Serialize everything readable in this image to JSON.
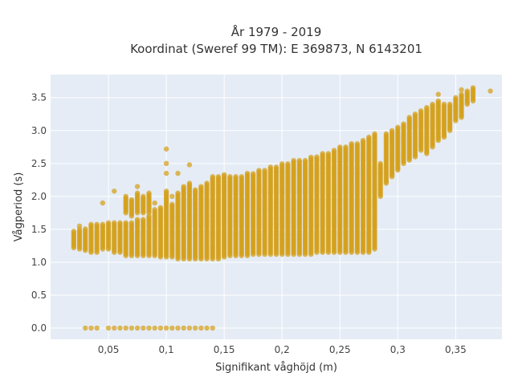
{
  "colors": {
    "background": "#ffffff",
    "plot_background": "#e5ecf6",
    "grid": "#ffffff",
    "marker": "#d4a017",
    "text": "#333333"
  },
  "chart_data": {
    "type": "scatter",
    "title_line1": "År 1979 - 2019",
    "title_line2": "Koordinat (Sweref 99 TM): E 369873, N 6143201",
    "xlabel": "Signifikant våghöjd (m)",
    "ylabel": "Vågperiod (s)",
    "xlim": [
      0.0,
      0.39
    ],
    "ylim": [
      -0.17,
      3.85
    ],
    "xticks": [
      0.05,
      0.1,
      0.15,
      0.2,
      0.25,
      0.3,
      0.35
    ],
    "xtick_labels": [
      "0,05",
      "0,1",
      "0,15",
      "0,2",
      "0,25",
      "0,3",
      "0,35"
    ],
    "yticks": [
      0,
      0.5,
      1,
      1.5,
      2,
      2.5,
      3,
      3.5
    ],
    "ytick_labels": [
      "0.0",
      "0.5",
      "1.0",
      "1.5",
      "2.0",
      "2.5",
      "3.0",
      "3.5"
    ],
    "grid": true,
    "marker_color": "#d4a017",
    "clusters": [
      {
        "x": 0.02,
        "ranges": [
          [
            1.22,
            1.47
          ]
        ]
      },
      {
        "x": 0.025,
        "ranges": [
          [
            1.2,
            1.5
          ]
        ],
        "extra": [
          1.55
        ]
      },
      {
        "x": 0.03,
        "ranges": [
          [
            1.18,
            1.52
          ]
        ],
        "extra": [
          0.0
        ]
      },
      {
        "x": 0.035,
        "ranges": [
          [
            1.15,
            1.58
          ]
        ],
        "extra": [
          0.0
        ]
      },
      {
        "x": 0.04,
        "ranges": [
          [
            1.15,
            1.58
          ]
        ],
        "extra": [
          0.0
        ]
      },
      {
        "x": 0.045,
        "ranges": [
          [
            1.2,
            1.58
          ]
        ],
        "extra": [
          1.9
        ]
      },
      {
        "x": 0.05,
        "ranges": [
          [
            1.2,
            1.6
          ]
        ],
        "extra": [
          0.0
        ]
      },
      {
        "x": 0.055,
        "ranges": [
          [
            1.15,
            1.6
          ]
        ],
        "extra": [
          2.08,
          0.0
        ]
      },
      {
        "x": 0.06,
        "ranges": [
          [
            1.15,
            1.6
          ]
        ],
        "extra": [
          0.0
        ]
      },
      {
        "x": 0.065,
        "ranges": [
          [
            1.1,
            1.6
          ],
          [
            1.75,
            2.0
          ]
        ],
        "extra": [
          0.0
        ]
      },
      {
        "x": 0.07,
        "ranges": [
          [
            1.1,
            1.6
          ],
          [
            1.7,
            1.95
          ]
        ],
        "extra": [
          0.0
        ]
      },
      {
        "x": 0.075,
        "ranges": [
          [
            1.1,
            1.65
          ],
          [
            1.75,
            2.05
          ]
        ],
        "extra": [
          2.15,
          0.0
        ]
      },
      {
        "x": 0.08,
        "ranges": [
          [
            1.1,
            1.65
          ],
          [
            1.75,
            2.0
          ]
        ],
        "extra": [
          0.0
        ]
      },
      {
        "x": 0.085,
        "ranges": [
          [
            1.1,
            1.7
          ],
          [
            1.75,
            2.05
          ]
        ],
        "extra": [
          0.0
        ]
      },
      {
        "x": 0.09,
        "ranges": [
          [
            1.1,
            1.8
          ]
        ],
        "extra": [
          1.9,
          0.0
        ]
      },
      {
        "x": 0.095,
        "ranges": [
          [
            1.08,
            1.85
          ]
        ],
        "extra": [
          0.0
        ]
      },
      {
        "x": 0.1,
        "ranges": [
          [
            1.08,
            2.1
          ]
        ],
        "extra": [
          2.35,
          2.5,
          2.72,
          0.0
        ]
      },
      {
        "x": 0.105,
        "ranges": [
          [
            1.08,
            1.9
          ]
        ],
        "extra": [
          2.0,
          0.0
        ]
      },
      {
        "x": 0.11,
        "ranges": [
          [
            1.05,
            2.05
          ]
        ],
        "extra": [
          2.35,
          0.0
        ]
      },
      {
        "x": 0.115,
        "ranges": [
          [
            1.05,
            2.15
          ]
        ],
        "extra": [
          0.0
        ]
      },
      {
        "x": 0.12,
        "ranges": [
          [
            1.05,
            2.2
          ]
        ],
        "extra": [
          2.48,
          0.0
        ]
      },
      {
        "x": 0.125,
        "ranges": [
          [
            1.05,
            2.1
          ]
        ],
        "extra": [
          0.0
        ]
      },
      {
        "x": 0.13,
        "ranges": [
          [
            1.05,
            2.15
          ]
        ],
        "extra": [
          0.0
        ]
      },
      {
        "x": 0.135,
        "ranges": [
          [
            1.05,
            2.2
          ]
        ],
        "extra": [
          0.0
        ]
      },
      {
        "x": 0.14,
        "ranges": [
          [
            1.05,
            2.3
          ]
        ],
        "extra": [
          0.0
        ]
      },
      {
        "x": 0.145,
        "ranges": [
          [
            1.05,
            2.3
          ]
        ]
      },
      {
        "x": 0.15,
        "ranges": [
          [
            1.08,
            2.35
          ]
        ]
      },
      {
        "x": 0.155,
        "ranges": [
          [
            1.1,
            2.3
          ]
        ]
      },
      {
        "x": 0.16,
        "ranges": [
          [
            1.1,
            2.3
          ]
        ]
      },
      {
        "x": 0.165,
        "ranges": [
          [
            1.1,
            2.3
          ]
        ]
      },
      {
        "x": 0.17,
        "ranges": [
          [
            1.1,
            2.35
          ]
        ]
      },
      {
        "x": 0.175,
        "ranges": [
          [
            1.12,
            2.35
          ]
        ]
      },
      {
        "x": 0.18,
        "ranges": [
          [
            1.12,
            2.4
          ]
        ]
      },
      {
        "x": 0.185,
        "ranges": [
          [
            1.12,
            2.4
          ]
        ]
      },
      {
        "x": 0.19,
        "ranges": [
          [
            1.12,
            2.45
          ]
        ]
      },
      {
        "x": 0.195,
        "ranges": [
          [
            1.12,
            2.45
          ]
        ]
      },
      {
        "x": 0.2,
        "ranges": [
          [
            1.12,
            2.5
          ]
        ]
      },
      {
        "x": 0.205,
        "ranges": [
          [
            1.12,
            2.5
          ]
        ]
      },
      {
        "x": 0.21,
        "ranges": [
          [
            1.12,
            2.55
          ]
        ]
      },
      {
        "x": 0.215,
        "ranges": [
          [
            1.12,
            2.55
          ]
        ]
      },
      {
        "x": 0.22,
        "ranges": [
          [
            1.12,
            2.55
          ]
        ]
      },
      {
        "x": 0.225,
        "ranges": [
          [
            1.12,
            2.6
          ]
        ]
      },
      {
        "x": 0.23,
        "ranges": [
          [
            1.15,
            2.6
          ]
        ]
      },
      {
        "x": 0.235,
        "ranges": [
          [
            1.15,
            2.65
          ]
        ]
      },
      {
        "x": 0.24,
        "ranges": [
          [
            1.15,
            2.65
          ]
        ]
      },
      {
        "x": 0.245,
        "ranges": [
          [
            1.15,
            2.7
          ]
        ]
      },
      {
        "x": 0.25,
        "ranges": [
          [
            1.15,
            2.75
          ]
        ]
      },
      {
        "x": 0.255,
        "ranges": [
          [
            1.15,
            2.75
          ]
        ]
      },
      {
        "x": 0.26,
        "ranges": [
          [
            1.15,
            2.8
          ]
        ]
      },
      {
        "x": 0.265,
        "ranges": [
          [
            1.15,
            2.8
          ]
        ]
      },
      {
        "x": 0.27,
        "ranges": [
          [
            1.15,
            2.85
          ]
        ]
      },
      {
        "x": 0.275,
        "ranges": [
          [
            1.15,
            2.9
          ]
        ]
      },
      {
        "x": 0.28,
        "ranges": [
          [
            1.2,
            2.95
          ]
        ]
      },
      {
        "x": 0.285,
        "ranges": [
          [
            2.0,
            2.5
          ]
        ]
      },
      {
        "x": 0.29,
        "ranges": [
          [
            2.2,
            2.95
          ]
        ]
      },
      {
        "x": 0.295,
        "ranges": [
          [
            2.3,
            3.0
          ]
        ]
      },
      {
        "x": 0.3,
        "ranges": [
          [
            2.4,
            3.05
          ]
        ]
      },
      {
        "x": 0.305,
        "ranges": [
          [
            2.5,
            3.1
          ]
        ]
      },
      {
        "x": 0.31,
        "ranges": [
          [
            2.55,
            3.2
          ]
        ]
      },
      {
        "x": 0.315,
        "ranges": [
          [
            2.6,
            3.25
          ]
        ]
      },
      {
        "x": 0.32,
        "ranges": [
          [
            2.7,
            3.3
          ]
        ]
      },
      {
        "x": 0.325,
        "ranges": [
          [
            2.65,
            3.35
          ]
        ]
      },
      {
        "x": 0.33,
        "ranges": [
          [
            2.75,
            3.4
          ]
        ]
      },
      {
        "x": 0.335,
        "ranges": [
          [
            2.85,
            3.45
          ]
        ],
        "extra": [
          3.55
        ]
      },
      {
        "x": 0.34,
        "ranges": [
          [
            2.9,
            3.4
          ]
        ]
      },
      {
        "x": 0.345,
        "ranges": [
          [
            3.0,
            3.4
          ]
        ]
      },
      {
        "x": 0.35,
        "ranges": [
          [
            3.15,
            3.5
          ]
        ]
      },
      {
        "x": 0.355,
        "ranges": [
          [
            3.2,
            3.55
          ]
        ],
        "extra": [
          3.62
        ]
      },
      {
        "x": 0.36,
        "ranges": [
          [
            3.4,
            3.6
          ]
        ]
      },
      {
        "x": 0.365,
        "ranges": [
          [
            3.45,
            3.65
          ]
        ]
      },
      {
        "x": 0.38,
        "ranges": [
          [
            3.6,
            3.6
          ]
        ]
      }
    ]
  }
}
